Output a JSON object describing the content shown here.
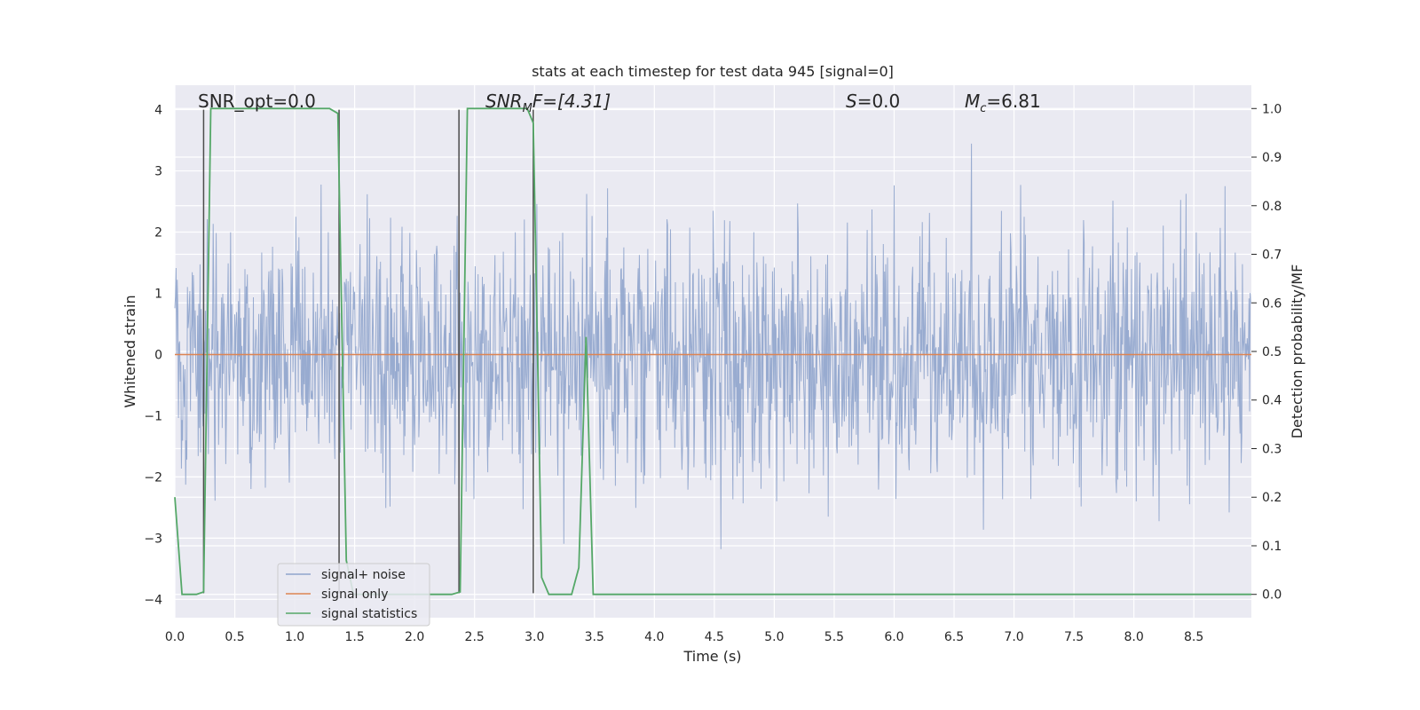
{
  "chart_data": {
    "type": "line",
    "title": "stats at each timestep for test data 945 [signal=0]",
    "xlabel": "Time (s)",
    "ylabel": "Whitened strain",
    "y2label": "Detection probability/MF",
    "xlim": [
      0.0,
      8.98
    ],
    "ylim": [
      -4.3,
      4.4
    ],
    "y2lim": [
      -0.048,
      1.048
    ],
    "xticks": [
      0.0,
      0.5,
      1.0,
      1.5,
      2.0,
      2.5,
      3.0,
      3.5,
      4.0,
      4.5,
      5.0,
      5.5,
      6.0,
      6.5,
      7.0,
      7.5,
      8.0,
      8.5
    ],
    "xtick_labels": [
      "0.0",
      "0.5",
      "1.0",
      "1.5",
      "2.0",
      "2.5",
      "3.0",
      "3.5",
      "4.0",
      "4.5",
      "5.0",
      "5.5",
      "6.0",
      "6.5",
      "7.0",
      "7.5",
      "8.0",
      "8.5"
    ],
    "yticks": [
      4,
      3,
      2,
      1,
      0,
      -1,
      -2,
      -3,
      -4
    ],
    "ytick_labels": [
      "4",
      "3",
      "2",
      "1",
      "0",
      "−1",
      "−2",
      "−3",
      "−4"
    ],
    "y2ticks": [
      1.0,
      0.9,
      0.8,
      0.7,
      0.6,
      0.5,
      0.4,
      0.3,
      0.2,
      0.1,
      0.0
    ],
    "y2tick_labels": [
      "1.0",
      "0.9",
      "0.8",
      "0.7",
      "0.6",
      "0.5",
      "0.4",
      "0.3",
      "0.2",
      "0.1",
      "0.0"
    ],
    "grid": true,
    "legend_position": "lower-left",
    "legend": [
      {
        "label": "signal+ noise",
        "color": "#8fa4cc"
      },
      {
        "label": "signal only",
        "color": "#dd8452"
      },
      {
        "label": "signal statistics",
        "color": "#55a868"
      }
    ],
    "annotations": {
      "snr_opt": "SNR_opt=0.0",
      "snr_mf_base": "SNR",
      "snr_mf_sub": "M",
      "snr_mf_rest": "F=[4.31]",
      "s_base": "S",
      "s_rest": "=0.0",
      "mc_base": "M",
      "mc_sub": "c",
      "mc_rest": "=6.81"
    },
    "noise_series": {
      "name": "signal+ noise",
      "dt": 0.005,
      "t_end": 8.98,
      "typical_abs_max": 2.3,
      "min": -3.92,
      "max": 4.0
    },
    "signal_only": {
      "name": "signal only",
      "value": 0.0
    },
    "vertical_lines": {
      "color": "#4c4c4c",
      "x": [
        0.24,
        1.37,
        2.37,
        2.99
      ],
      "y_range": [
        -3.9,
        4.0
      ]
    },
    "statistics_series": {
      "name": "signal statistics",
      "x": [
        0.0,
        0.06,
        0.18,
        0.24,
        0.3,
        1.29,
        1.36,
        1.43,
        1.49,
        2.31,
        2.38,
        2.44,
        2.94,
        2.99,
        3.06,
        3.12,
        3.31,
        3.37,
        3.43,
        3.49,
        8.98
      ],
      "y": [
        0.2,
        0.0,
        0.0,
        0.005,
        1.0,
        1.0,
        0.99,
        0.07,
        0.0,
        0.0,
        0.005,
        1.0,
        1.0,
        0.97,
        0.035,
        0.0,
        0.0,
        0.055,
        0.53,
        0.0,
        0.0
      ]
    }
  }
}
